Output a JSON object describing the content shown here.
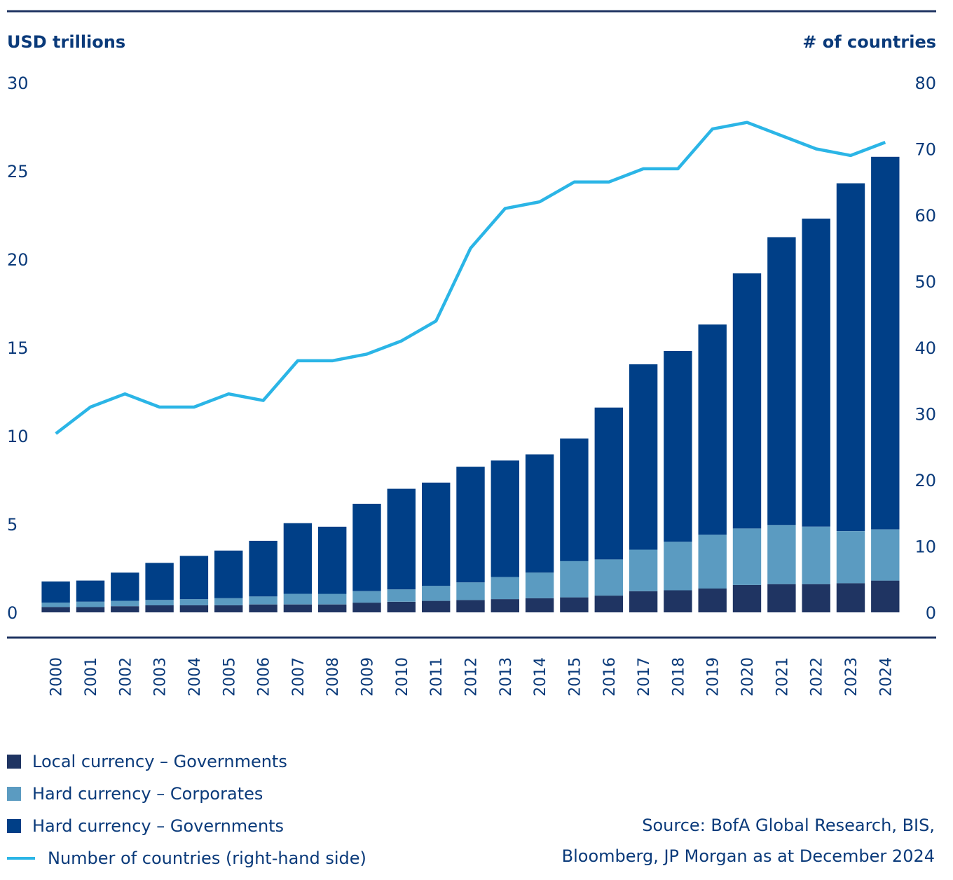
{
  "chart_data": {
    "type": "bar",
    "stacked": true,
    "left_axis_title": "USD trillions",
    "right_axis_title": "# of countries",
    "left_ylim": [
      0,
      30
    ],
    "left_ticks": [
      "0",
      "5",
      "10",
      "15",
      "20",
      "25",
      "30"
    ],
    "right_ylim": [
      0,
      80
    ],
    "right_ticks": [
      "0",
      "10",
      "20",
      "30",
      "40",
      "50",
      "60",
      "70",
      "80"
    ],
    "categories": [
      "2000",
      "2001",
      "2002",
      "2003",
      "2004",
      "2005",
      "2006",
      "2007",
      "2008",
      "2009",
      "2010",
      "2011",
      "2012",
      "2013",
      "2014",
      "2015",
      "2016",
      "2017",
      "2018",
      "2019",
      "2020",
      "2021",
      "2022",
      "2023",
      "2024"
    ],
    "series": [
      {
        "name": "Local currency – Governments",
        "color": "#1f3462",
        "axis": "left",
        "values": [
          0.3,
          0.3,
          0.35,
          0.4,
          0.4,
          0.4,
          0.45,
          0.45,
          0.45,
          0.55,
          0.6,
          0.65,
          0.7,
          0.75,
          0.8,
          0.85,
          0.95,
          1.2,
          1.25,
          1.35,
          1.55,
          1.6,
          1.6,
          1.65,
          1.8
        ]
      },
      {
        "name": "Hard currency – Corporates",
        "color": "#5b9bc1",
        "axis": "left",
        "values": [
          0.25,
          0.3,
          0.3,
          0.3,
          0.35,
          0.4,
          0.45,
          0.6,
          0.6,
          0.65,
          0.7,
          0.85,
          1.0,
          1.25,
          1.45,
          2.05,
          2.05,
          2.35,
          2.75,
          3.05,
          3.2,
          3.35,
          3.25,
          2.95,
          2.9
        ]
      },
      {
        "name": "Hard currency – Governments",
        "color": "#003f87",
        "axis": "left",
        "values": [
          1.2,
          1.2,
          1.6,
          2.1,
          2.45,
          2.7,
          3.15,
          4.0,
          3.8,
          4.95,
          5.7,
          5.85,
          6.55,
          6.6,
          6.7,
          6.95,
          8.6,
          10.5,
          10.8,
          11.9,
          14.45,
          16.3,
          17.45,
          19.7,
          21.1
        ]
      },
      {
        "name": "Number of countries (right-hand side)",
        "color": "#2bb5e6",
        "axis": "right",
        "type": "line",
        "values": [
          27,
          31,
          33,
          31,
          31,
          33,
          32,
          38,
          38,
          39,
          41,
          44,
          55,
          61,
          62,
          65,
          65,
          67,
          67,
          73,
          74,
          72,
          70,
          69,
          71
        ]
      }
    ],
    "grid": false,
    "legend_position": "bottom-left"
  },
  "source": {
    "line1": "Source: BofA Global Research, BIS,",
    "line2": "Bloomberg, JP Morgan as at December 2024"
  }
}
